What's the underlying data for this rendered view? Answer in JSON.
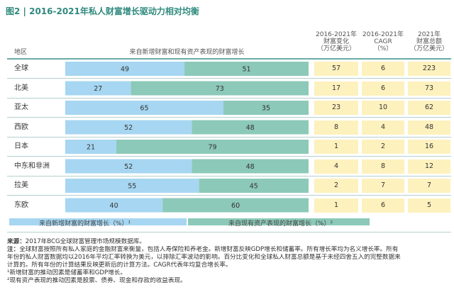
{
  "title": "图2 | 2016-2021年私人财富增长驱动力相对均衡",
  "headers": {
    "region": "地区",
    "bar": "来自新增财富和现有资产表现的财富增长",
    "change": [
      "2016-2021年",
      "财富变化",
      "（万亿美元）"
    ],
    "cagr": [
      "2016-2021年",
      "CAGR",
      "（%）"
    ],
    "total": [
      "2021年",
      "财富总额",
      "（万亿美元）"
    ]
  },
  "colors": {
    "new_wealth": "#a6d6f1",
    "existing_assets": "#8cc9b8",
    "cell_bg": "#fdf1bd",
    "title": "#2f8a7e"
  },
  "chart_data": {
    "type": "bar",
    "orientation": "horizontal",
    "stacked": true,
    "categories": [
      "全球",
      "北美",
      "亚太",
      "西欧",
      "日本",
      "中东和非洲",
      "拉美",
      "东欧"
    ],
    "series": [
      {
        "name": "来自新增财富的财富增长（%）¹",
        "values": [
          49,
          27,
          65,
          52,
          21,
          52,
          55,
          40
        ]
      },
      {
        "name": "来自现有资产表现的财富增长（%）²",
        "values": [
          51,
          73,
          35,
          48,
          79,
          48,
          45,
          60
        ]
      }
    ],
    "xlim": [
      0,
      100
    ],
    "legend_position": "bottom",
    "table_columns": {
      "change": [
        57,
        17,
        23,
        8,
        1,
        4,
        2,
        1
      ],
      "cagr": [
        6,
        6,
        10,
        4,
        2,
        8,
        7,
        6
      ],
      "total": [
        223,
        73,
        62,
        48,
        16,
        12,
        7,
        5
      ]
    }
  },
  "legend": {
    "new_wealth": "来自新增财富的财富增长（%）¹",
    "existing_assets": "来自现有资产表现的财富增长（%）²"
  },
  "notes": {
    "source_label": "来源：",
    "source": "2017年BCG全球财富管理市场规模数据库。",
    "note_label": "注：",
    "lines": [
      "全球财富按照所有私人家庭的金融财富来衡量，包括人寿保险和养老金。新增财富反映GDP增长和储蓄率。所有增长率均为名义增长率。所有",
      "年份的私人财富数据均以2016年平均汇率转换为美元，以排除汇率波动的影响。百分比变化和全球私人财富总额是基于未经四舍五入的完整数据来",
      "计算的。所有年份的计算结果反映更新后的计算方法。CAGR代表年均复合增长率。",
      "¹新增财富的推动因素是储蓄率和GDP增长。",
      "²现有资产表现的推动因素是股票、债券、现金和存款的收益表现。"
    ]
  }
}
